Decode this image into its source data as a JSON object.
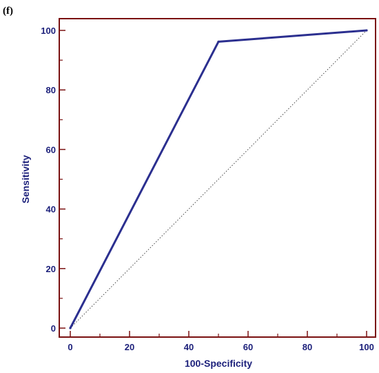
{
  "panel_label": "(f)",
  "colors": {
    "frame": "#7a1010",
    "roc_line": "#2b2f8f",
    "diagonal": "#444444",
    "label_text": "#1b1f7a"
  },
  "chart_data": {
    "type": "line",
    "title": "",
    "xlabel": "100-Specificity",
    "ylabel": "Sensitivity",
    "xlim": [
      0,
      100
    ],
    "ylim": [
      0,
      100
    ],
    "x_ticks": [
      0,
      20,
      40,
      60,
      80,
      100
    ],
    "y_ticks": [
      0,
      20,
      40,
      60,
      80,
      100
    ],
    "grid": false,
    "legend": "none",
    "series": [
      {
        "style": "solid",
        "points": [
          [
            0,
            0
          ],
          [
            50,
            96.2
          ],
          [
            100,
            100
          ]
        ]
      },
      {
        "style": "dotted",
        "points": [
          [
            0,
            0
          ],
          [
            100,
            100
          ]
        ]
      }
    ]
  }
}
